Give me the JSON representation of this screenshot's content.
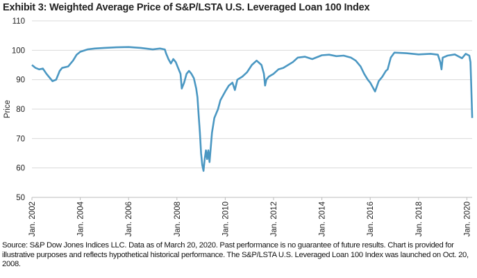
{
  "chart_data": {
    "type": "line",
    "title": "Exhibit 3: Weighted Average Price of S&P/LSTA U.S. Leveraged Loan 100 Index",
    "xlabel": "",
    "ylabel": "Price",
    "ylim": [
      50,
      110
    ],
    "yticks": [
      "50",
      "60",
      "70",
      "80",
      "90",
      "100",
      "110"
    ],
    "xlim": [
      2002,
      2020.22
    ],
    "xticks": [
      {
        "year": 2002,
        "label": "Jan. 2002"
      },
      {
        "year": 2004,
        "label": "Jan. 2004"
      },
      {
        "year": 2006,
        "label": "Jan. 2006"
      },
      {
        "year": 2008,
        "label": "Jan. 2008"
      },
      {
        "year": 2010,
        "label": "Jan. 2010"
      },
      {
        "year": 2012,
        "label": "Jan. 2012"
      },
      {
        "year": 2014,
        "label": "Jan. 2014"
      },
      {
        "year": 2016,
        "label": "Jan. 2016"
      },
      {
        "year": 2018,
        "label": "Jan. 2018"
      },
      {
        "year": 2020,
        "label": "Jan. 2020"
      }
    ],
    "grid": true,
    "color": "#4a97c2",
    "series": [
      {
        "name": "Weighted Average Price",
        "x": [
          2002.0,
          2002.15,
          2002.3,
          2002.45,
          2002.6,
          2002.75,
          2002.85,
          2003.0,
          2003.15,
          2003.25,
          2003.5,
          2003.7,
          2003.85,
          2004.0,
          2004.3,
          2004.6,
          2005.0,
          2005.5,
          2006.0,
          2006.5,
          2007.0,
          2007.3,
          2007.5,
          2007.55,
          2007.65,
          2007.75,
          2007.85,
          2007.95,
          2008.05,
          2008.15,
          2008.2,
          2008.3,
          2008.4,
          2008.5,
          2008.6,
          2008.7,
          2008.8,
          2008.85,
          2008.9,
          2008.95,
          2009.0,
          2009.05,
          2009.1,
          2009.15,
          2009.2,
          2009.25,
          2009.3,
          2009.35,
          2009.45,
          2009.55,
          2009.7,
          2009.8,
          2009.9,
          2010.0,
          2010.15,
          2010.3,
          2010.4,
          2010.5,
          2010.7,
          2010.9,
          2011.1,
          2011.3,
          2011.5,
          2011.6,
          2011.65,
          2011.7,
          2011.8,
          2011.9,
          2012.0,
          2012.2,
          2012.4,
          2012.6,
          2012.8,
          2013.0,
          2013.3,
          2013.6,
          2014.0,
          2014.3,
          2014.6,
          2014.9,
          2015.2,
          2015.4,
          2015.6,
          2015.75,
          2015.9,
          2016.0,
          2016.1,
          2016.2,
          2016.35,
          2016.5,
          2016.65,
          2016.72,
          2016.85,
          2017.0,
          2017.5,
          2018.0,
          2018.5,
          2018.8,
          2018.9,
          2018.95,
          2019.0,
          2019.2,
          2019.5,
          2019.8,
          2019.95,
          2020.1,
          2020.15,
          2020.18,
          2020.22
        ],
        "y": [
          95,
          94,
          93.5,
          93.8,
          92,
          90.5,
          89.5,
          90,
          93,
          94,
          94.5,
          96.5,
          98.5,
          99.5,
          100.3,
          100.6,
          100.8,
          101,
          101.1,
          100.8,
          100.3,
          100.6,
          100.3,
          99,
          97,
          95.5,
          97,
          96,
          94,
          92,
          87,
          89,
          92,
          93,
          92,
          90.5,
          87,
          84,
          78,
          72,
          65,
          61,
          59,
          63,
          66,
          63,
          66,
          62,
          72,
          77,
          80,
          83,
          84.5,
          86,
          88,
          89,
          86.5,
          90,
          91,
          92.5,
          95,
          96.5,
          95,
          92,
          88,
          90,
          91,
          91.5,
          92,
          93.5,
          94,
          95,
          96,
          97.5,
          97.8,
          97,
          98.3,
          98.5,
          98,
          98.2,
          97.5,
          96.5,
          94.5,
          92,
          90,
          89,
          87.5,
          86,
          89.5,
          91,
          93,
          93.5,
          97.5,
          99.2,
          99,
          98.6,
          98.8,
          98.5,
          96,
          93.5,
          97.5,
          98.2,
          98.6,
          97.3,
          98.8,
          98.2,
          96,
          88,
          77
        ]
      }
    ]
  },
  "note": "Source: S&P Dow Jones Indices LLC. Data as of March 20, 2020. Past performance is no guarantee of future results. Chart is provided for illustrative purposes and reflects hypothetical historical performance. The S&P/LSTA U.S. Leveraged Loan 100 Index was launched on Oct. 20, 2008."
}
